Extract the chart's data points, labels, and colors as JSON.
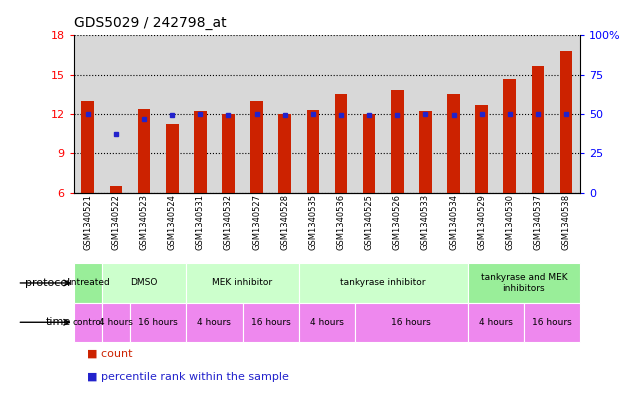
{
  "title": "GDS5029 / 242798_at",
  "samples": [
    "GSM1340521",
    "GSM1340522",
    "GSM1340523",
    "GSM1340524",
    "GSM1340531",
    "GSM1340532",
    "GSM1340527",
    "GSM1340528",
    "GSM1340535",
    "GSM1340536",
    "GSM1340525",
    "GSM1340526",
    "GSM1340533",
    "GSM1340534",
    "GSM1340529",
    "GSM1340530",
    "GSM1340537",
    "GSM1340538"
  ],
  "bar_values": [
    13.0,
    6.5,
    12.4,
    11.2,
    12.2,
    12.0,
    13.0,
    12.0,
    12.3,
    13.5,
    12.0,
    13.8,
    12.2,
    13.5,
    12.7,
    14.7,
    15.7,
    16.8
  ],
  "blue_dots": [
    12.0,
    10.5,
    11.6,
    11.9,
    12.0,
    11.9,
    12.0,
    11.9,
    12.0,
    11.9,
    11.9,
    11.9,
    12.0,
    11.9,
    12.0,
    12.0,
    12.0,
    12.0
  ],
  "bar_color": "#cc2200",
  "dot_color": "#2222cc",
  "ylim": [
    6,
    18
  ],
  "yticks_left": [
    6,
    9,
    12,
    15,
    18
  ],
  "yticks_right": [
    0,
    25,
    50,
    75,
    100
  ],
  "yright_labels": [
    "0",
    "25",
    "50",
    "75",
    "100%"
  ],
  "proto_defs": [
    [
      "untreated",
      0,
      1,
      "#99ee99"
    ],
    [
      "DMSO",
      1,
      4,
      "#ccffcc"
    ],
    [
      "MEK inhibitor",
      4,
      8,
      "#ccffcc"
    ],
    [
      "tankyrase inhibitor",
      8,
      14,
      "#ccffcc"
    ],
    [
      "tankyrase and MEK\ninhibitors",
      14,
      18,
      "#99ee99"
    ]
  ],
  "time_defs": [
    [
      "control",
      0,
      1,
      "#ee88ee"
    ],
    [
      "4 hours",
      1,
      2,
      "#ee88ee"
    ],
    [
      "16 hours",
      2,
      4,
      "#ee88ee"
    ],
    [
      "4 hours",
      4,
      6,
      "#ee88ee"
    ],
    [
      "16 hours",
      6,
      8,
      "#ee88ee"
    ],
    [
      "4 hours",
      8,
      10,
      "#ee88ee"
    ],
    [
      "16 hours",
      10,
      14,
      "#ee88ee"
    ],
    [
      "4 hours",
      14,
      16,
      "#ee88ee"
    ],
    [
      "16 hours",
      16,
      18,
      "#ee88ee"
    ]
  ],
  "legend_count_color": "#cc2200",
  "legend_dot_color": "#2222cc",
  "sample_col_bg": "#d8d8d8"
}
